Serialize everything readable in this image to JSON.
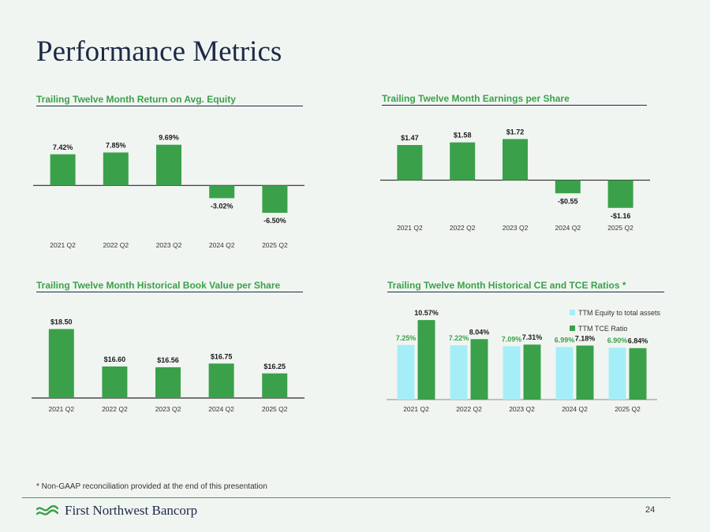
{
  "page": {
    "title": "Performance Metrics",
    "footnote": "* Non-GAAP reconciliation provided at the end of this presentation",
    "company": "First Northwest Bancorp",
    "page_number": "24"
  },
  "colors": {
    "accent_green": "#3aa14a",
    "light_cyan": "#a6eef7",
    "title_navy": "#1d2a44",
    "axis": "#2b2b2b"
  },
  "chart_data": [
    {
      "type": "bar",
      "title": "Trailing Twelve Month Return on Avg. Equity",
      "categories": [
        "2021 Q2",
        "2022 Q2",
        "2023 Q2",
        "2024 Q2",
        "2025 Q2"
      ],
      "values": [
        7.42,
        7.85,
        9.69,
        -3.02,
        -6.5
      ],
      "labels": [
        "7.42%",
        "7.85%",
        "9.69%",
        "-3.02%",
        "-6.50%"
      ],
      "ylim": [
        -8,
        10
      ],
      "xlabel": "",
      "ylabel": "",
      "grid": false
    },
    {
      "type": "bar",
      "title": "Trailing Twelve Month Earnings per Share",
      "categories": [
        "2021 Q2",
        "2022 Q2",
        "2023 Q2",
        "2024 Q2",
        "2025 Q2"
      ],
      "values": [
        1.47,
        1.58,
        1.72,
        -0.55,
        -1.16
      ],
      "labels": [
        "$1.47",
        "$1.58",
        "$1.72",
        "-$0.55",
        "-$1.16"
      ],
      "ylim": [
        -1.3,
        1.8
      ],
      "xlabel": "",
      "ylabel": "",
      "grid": false
    },
    {
      "type": "bar",
      "title": "Trailing Twelve Month Historical Book Value per Share",
      "categories": [
        "2021 Q2",
        "2022 Q2",
        "2023 Q2",
        "2024 Q2",
        "2025 Q2"
      ],
      "values": [
        18.5,
        16.6,
        16.56,
        16.75,
        16.25
      ],
      "labels": [
        "$18.50",
        "$16.60",
        "$16.56",
        "$16.75",
        "$16.25"
      ],
      "ylim": [
        15.0,
        18.6
      ],
      "xlabel": "",
      "ylabel": "",
      "grid": false
    },
    {
      "type": "bar",
      "title": "Trailing Twelve Month Historical CE and TCE Ratios *",
      "categories": [
        "2021 Q2",
        "2022 Q2",
        "2023 Q2",
        "2024 Q2",
        "2025 Q2"
      ],
      "series": [
        {
          "name": "TTM Equity to total assets",
          "values": [
            7.25,
            7.22,
            7.09,
            6.99,
            6.9
          ],
          "labels": [
            "7.25%",
            "7.22%",
            "7.09%",
            "6.99%",
            "6.90%"
          ]
        },
        {
          "name": "TTM TCE Ratio",
          "values": [
            10.57,
            8.04,
            7.31,
            7.18,
            6.84
          ],
          "labels": [
            "10.57%",
            "8.04%",
            "7.31%",
            "7.18%",
            "6.84%"
          ]
        }
      ],
      "ylim": [
        0,
        11
      ],
      "legend": "top-right",
      "xlabel": "",
      "ylabel": "",
      "grid": false
    }
  ]
}
